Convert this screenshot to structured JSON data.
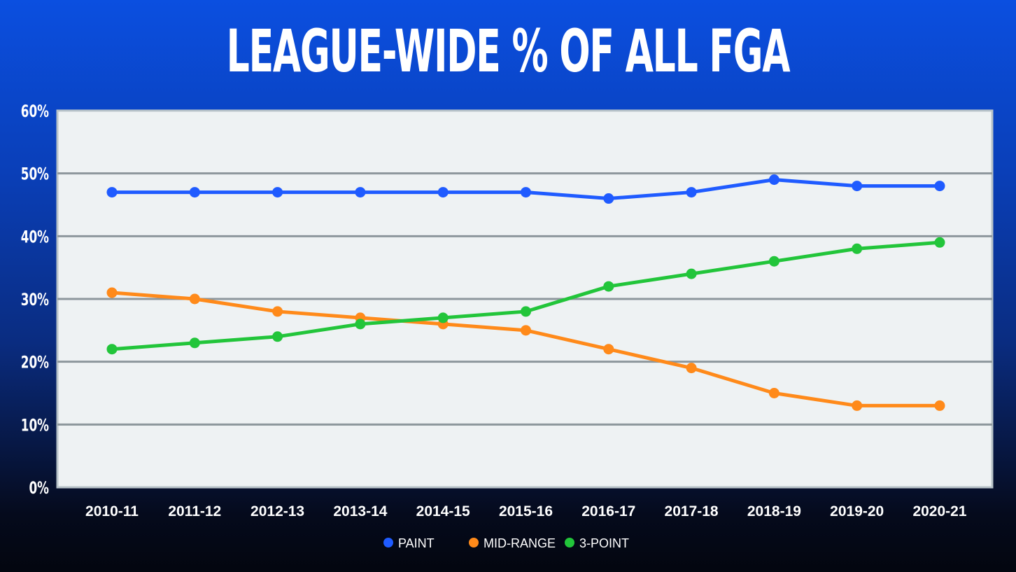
{
  "chart_data": {
    "type": "line",
    "title": "LEAGUE-WIDE % OF ALL FGA",
    "categories": [
      "2010-11",
      "2011-12",
      "2012-13",
      "2013-14",
      "2014-15",
      "2015-16",
      "2016-17",
      "2017-18",
      "2018-19",
      "2019-20",
      "2020-21"
    ],
    "yticks": [
      "0%",
      "10%",
      "20%",
      "30%",
      "40%",
      "50%",
      "60%"
    ],
    "ylim": [
      0,
      60
    ],
    "grid": true,
    "legend_position": "bottom",
    "series": [
      {
        "name": "PAINT",
        "color": "#1f5bff",
        "values": [
          47,
          47,
          47,
          47,
          47,
          47,
          46,
          47,
          49,
          48,
          48
        ]
      },
      {
        "name": "MID-RANGE",
        "color": "#ff8a1a",
        "values": [
          31,
          30,
          28,
          27,
          26,
          25,
          22,
          19,
          15,
          13,
          13
        ]
      },
      {
        "name": "3-POINT",
        "color": "#22c53a",
        "values": [
          22,
          23,
          24,
          26,
          27,
          28,
          32,
          34,
          36,
          38,
          39
        ]
      }
    ]
  }
}
